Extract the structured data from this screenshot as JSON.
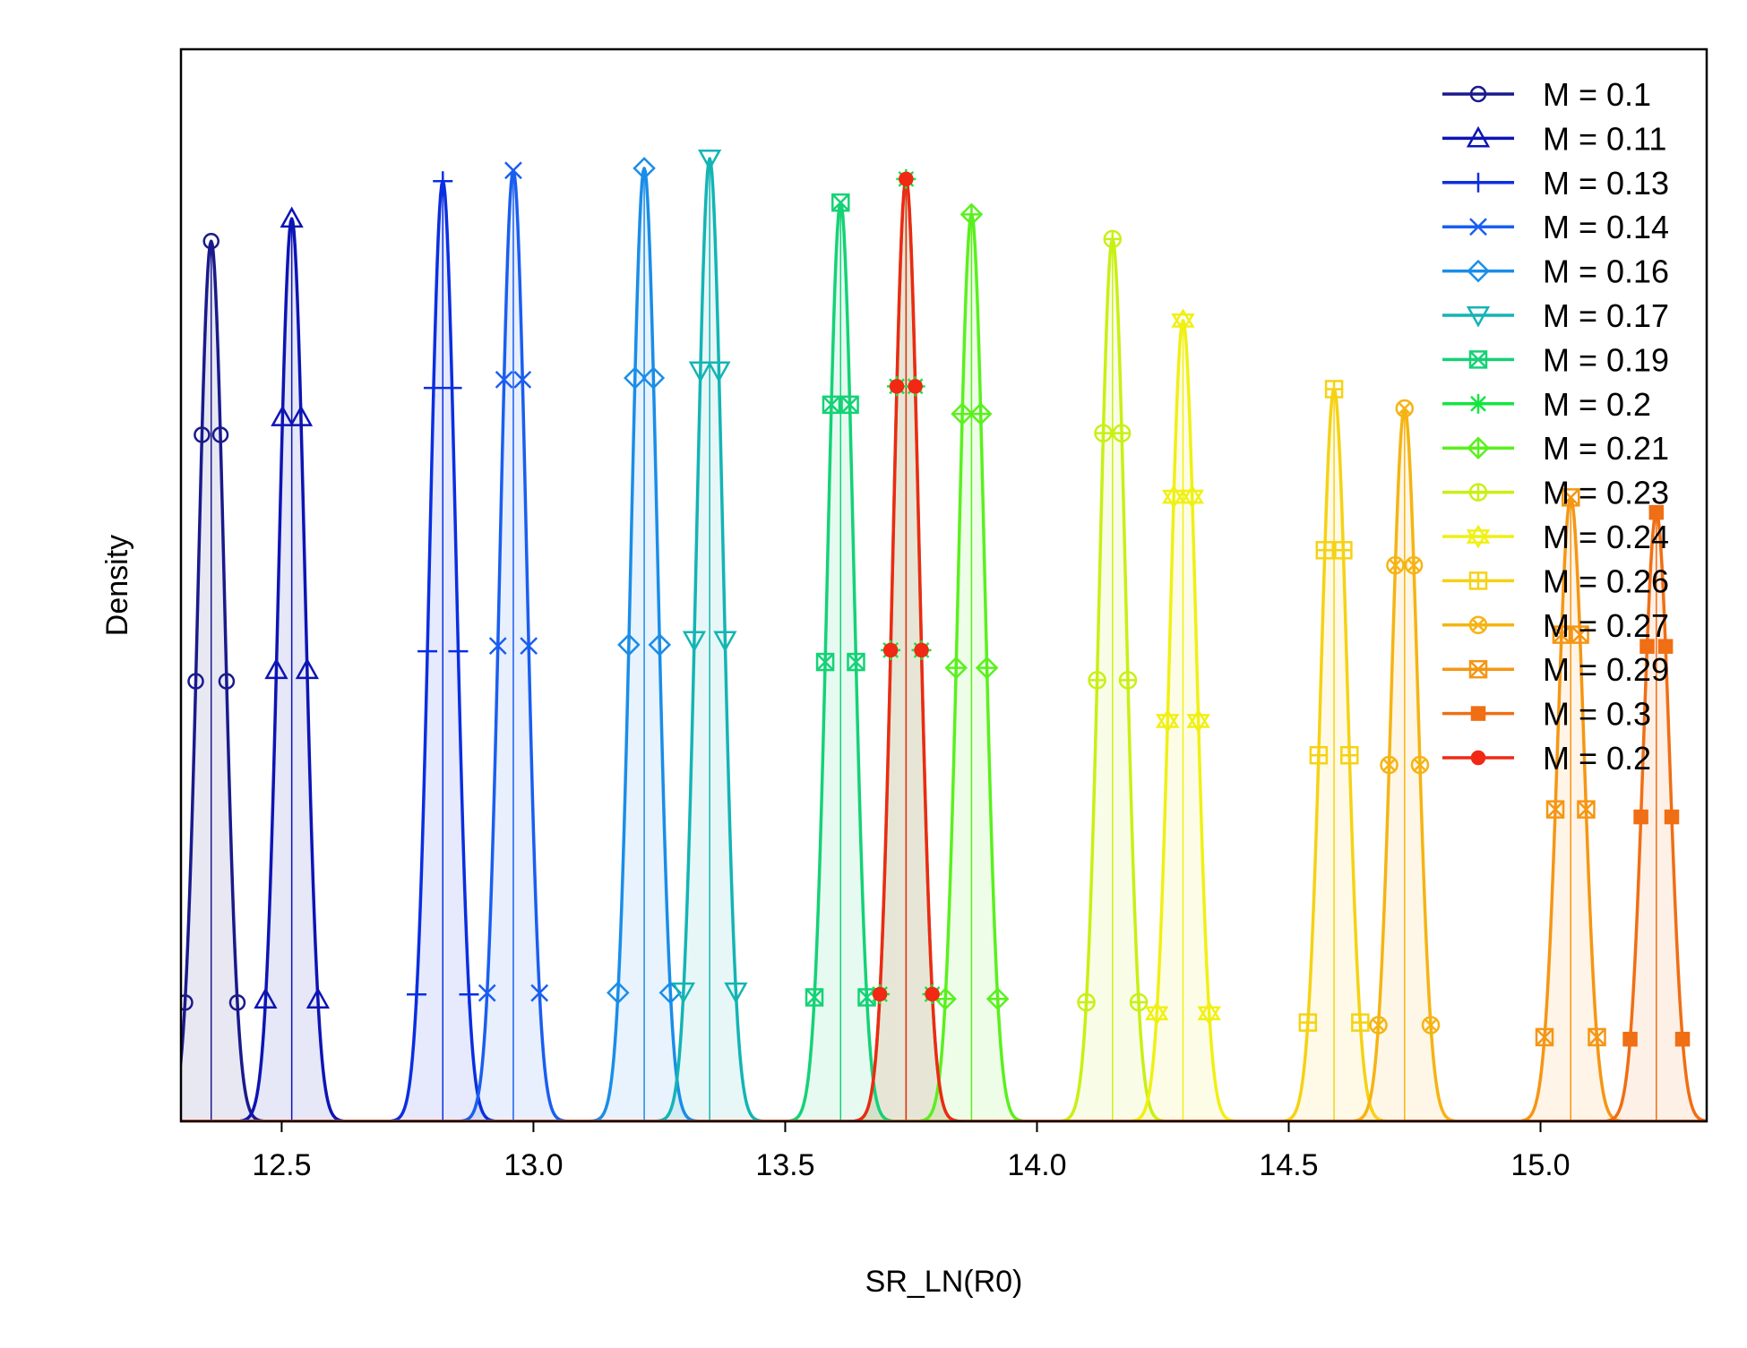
{
  "chart_data": {
    "type": "area",
    "title": "",
    "xlabel": "SR_LN(R0)",
    "ylabel": "Density",
    "xlim": [
      12.3,
      15.33
    ],
    "x_ticks": [
      "12.5",
      "13.0",
      "13.5",
      "14.0",
      "14.5",
      "15.0"
    ],
    "y_ticks_shown": false,
    "grid": false,
    "legend_position": "top-right",
    "series": [
      {
        "name": "M = 0.1",
        "color": "#1a1a8c",
        "marker": "circle",
        "mean": 12.36,
        "sd": 0.026,
        "peak": 0.821
      },
      {
        "name": "M = 0.11",
        "color": "#0d14b4",
        "marker": "triangle-up",
        "mean": 12.52,
        "sd": 0.026,
        "peak": 0.842
      },
      {
        "name": "M = 0.13",
        "color": "#0a2ee0",
        "marker": "plus",
        "mean": 12.82,
        "sd": 0.026,
        "peak": 0.877
      },
      {
        "name": "M = 0.14",
        "color": "#1a5ef0",
        "marker": "cross",
        "mean": 12.96,
        "sd": 0.026,
        "peak": 0.887
      },
      {
        "name": "M = 0.16",
        "color": "#1a8de8",
        "marker": "diamond",
        "mean": 13.22,
        "sd": 0.026,
        "peak": 0.889
      },
      {
        "name": "M = 0.17",
        "color": "#14b4b4",
        "marker": "triangle-down",
        "mean": 13.35,
        "sd": 0.026,
        "peak": 0.898
      },
      {
        "name": "M = 0.19",
        "color": "#14d276",
        "marker": "square-cross",
        "mean": 13.61,
        "sd": 0.026,
        "peak": 0.857
      },
      {
        "name": "M = 0.2",
        "color": "#14e640",
        "marker": "asterisk",
        "mean": 13.74,
        "sd": 0.026,
        "peak": 0.879
      },
      {
        "name": "M = 0.21",
        "color": "#5af01e",
        "marker": "diamond-plus",
        "mean": 13.87,
        "sd": 0.026,
        "peak": 0.846
      },
      {
        "name": "M = 0.23",
        "color": "#c8f014",
        "marker": "circle-plus",
        "mean": 14.15,
        "sd": 0.026,
        "peak": 0.823
      },
      {
        "name": "M = 0.24",
        "color": "#f0f014",
        "marker": "star",
        "mean": 14.29,
        "sd": 0.026,
        "peak": 0.747
      },
      {
        "name": "M = 0.26",
        "color": "#f5d214",
        "marker": "square-plus",
        "mean": 14.59,
        "sd": 0.026,
        "peak": 0.683
      },
      {
        "name": "M = 0.27",
        "color": "#f5b414",
        "marker": "circle-cross",
        "mean": 14.73,
        "sd": 0.026,
        "peak": 0.665
      },
      {
        "name": "M = 0.29",
        "color": "#f59614",
        "marker": "square-cross",
        "mean": 15.06,
        "sd": 0.026,
        "peak": 0.582
      },
      {
        "name": "M = 0.3",
        "color": "#f06e14",
        "marker": "filled-square",
        "mean": 15.23,
        "sd": 0.026,
        "peak": 0.568
      },
      {
        "name": "M = 0.2",
        "color": "#f02814",
        "marker": "filled-circle",
        "mean": 13.74,
        "sd": 0.026,
        "peak": 0.879
      }
    ]
  }
}
